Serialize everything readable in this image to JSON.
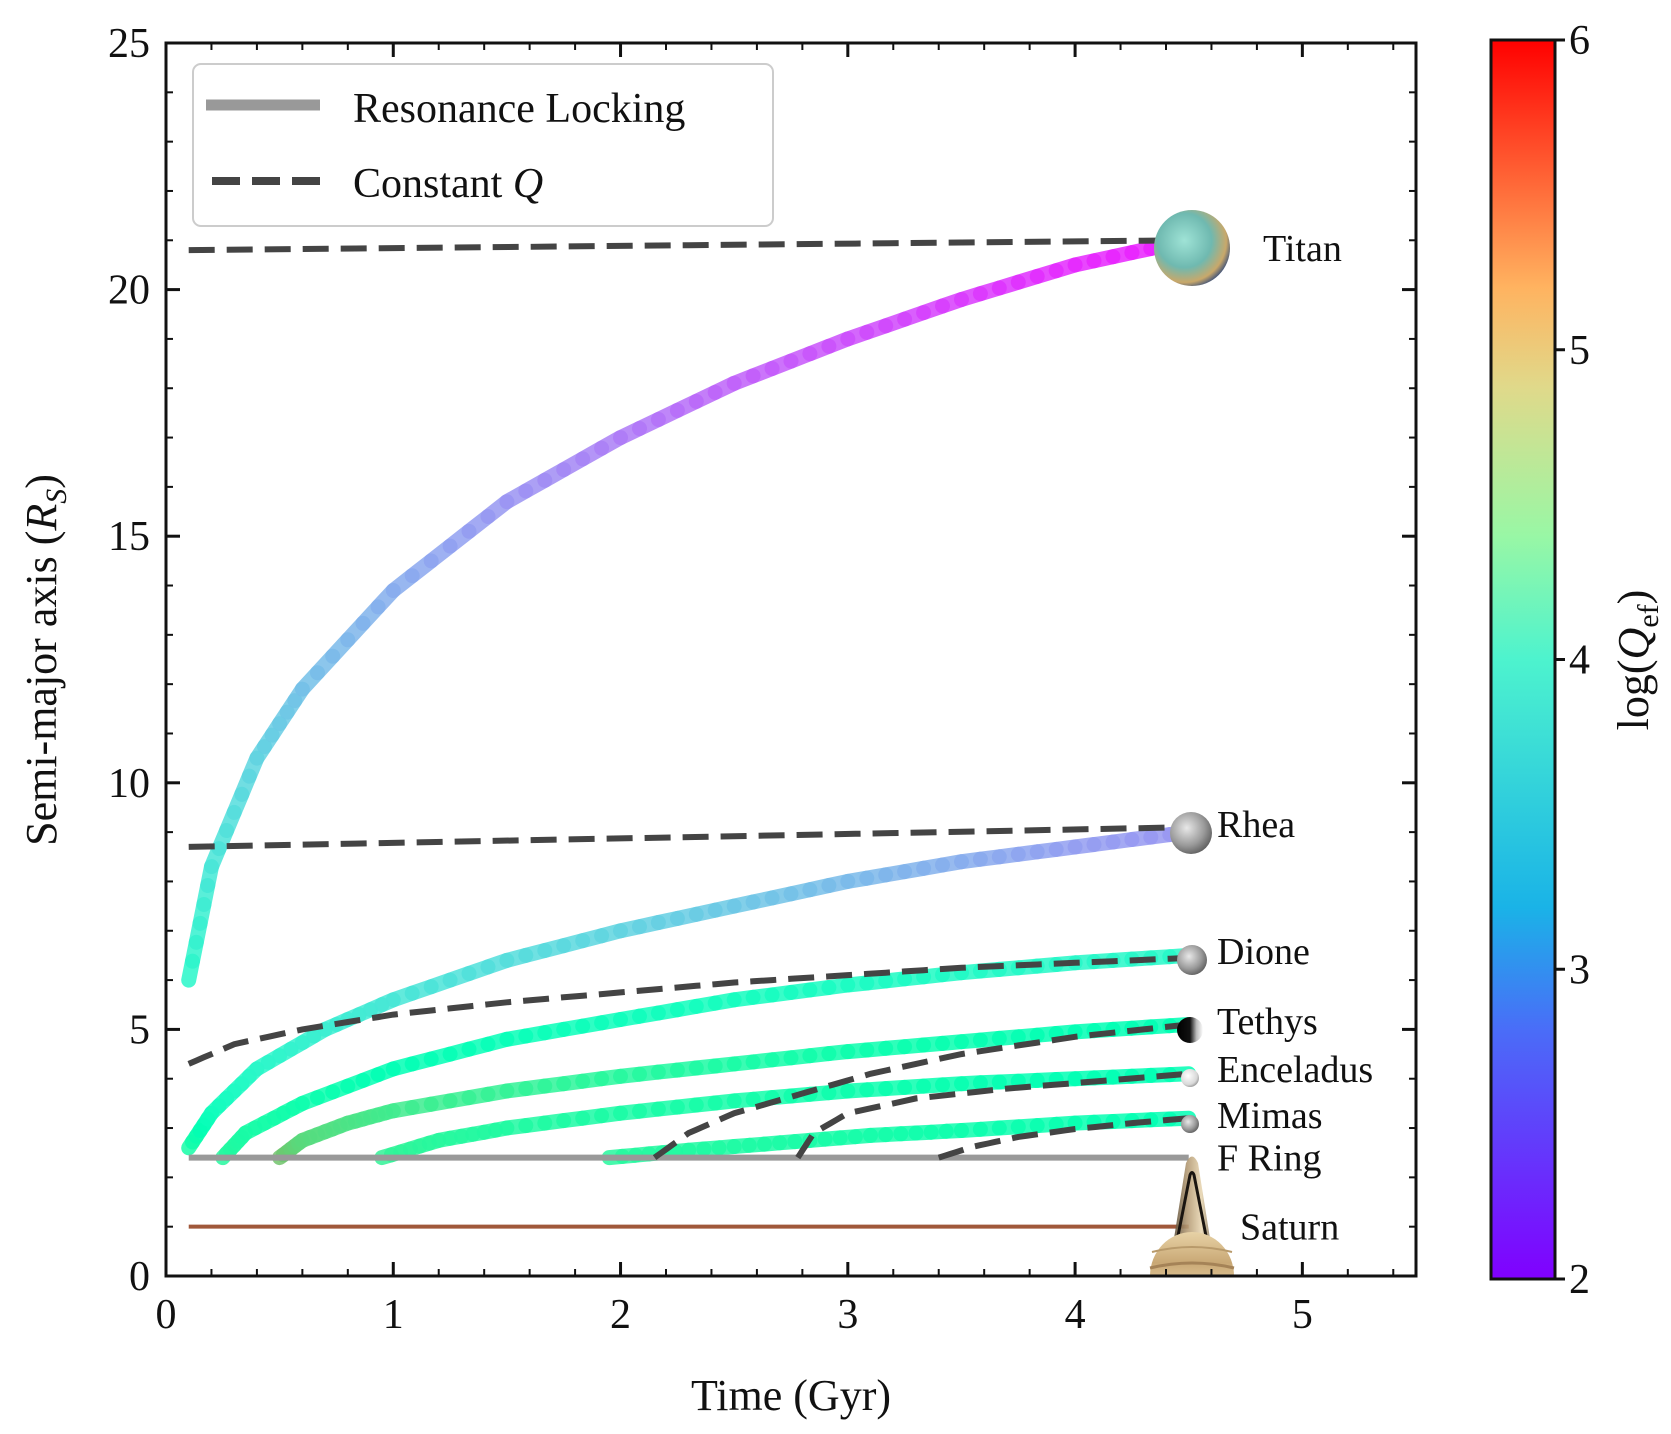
{
  "chart_data": {
    "type": "line",
    "xlabel": "Time (Gyr)",
    "ylabel_main": "Semi-major axis (",
    "ylabel_symbol": "R",
    "ylabel_sub": "S",
    "ylabel_close": ")",
    "xlim": [
      0,
      5.5
    ],
    "ylim": [
      0,
      25
    ],
    "x_ticks": [
      0,
      1,
      2,
      3,
      4,
      5
    ],
    "y_ticks": [
      0,
      5,
      10,
      15,
      20,
      25
    ],
    "legend": {
      "position": "top-left",
      "entries": [
        {
          "label": "Resonance Locking",
          "style": "solid",
          "color": "#999999"
        },
        {
          "label_main": "Constant ",
          "label_italic": "Q",
          "style": "dashed",
          "color": "#444444"
        }
      ]
    },
    "colorbar": {
      "label_prefix": "log(",
      "label_symbol": "Q",
      "label_sub": "ef",
      "label_suffix": ")",
      "range": [
        2,
        6
      ],
      "ticks": [
        2,
        3,
        4,
        5,
        6
      ],
      "colormap": "rainbow"
    },
    "saturn_line": {
      "y": 1,
      "x_end": 4.5,
      "color": "#a0583a"
    },
    "f_ring_line": {
      "y": 2.4,
      "x_start": 0.1,
      "x_end": 4.5,
      "color": "#999999"
    },
    "moons": [
      {
        "name": "Titan",
        "final_a": 21.0,
        "rl_x": [
          0.1,
          0.2,
          0.4,
          0.6,
          1.0,
          1.5,
          2.0,
          2.5,
          3.0,
          3.5,
          4.0,
          4.5
        ],
        "rl_y": [
          6.0,
          8.3,
          10.5,
          11.9,
          13.9,
          15.7,
          17.0,
          18.1,
          19.0,
          19.8,
          20.5,
          21.0
        ],
        "rl_logQ": [
          3.7,
          3.45,
          3.25,
          3.1,
          2.95,
          2.8,
          2.65,
          2.5,
          2.4,
          2.3,
          2.2,
          2.15
        ],
        "cq_x": [
          0.1,
          4.5
        ],
        "cq_y": [
          20.8,
          21.0
        ]
      },
      {
        "name": "Rhea",
        "final_a": 9.1,
        "rl_x": [
          0.1,
          0.2,
          0.4,
          0.7,
          1.0,
          1.5,
          2.0,
          2.5,
          3.0,
          3.5,
          4.0,
          4.5
        ],
        "rl_y": [
          2.6,
          3.3,
          4.2,
          5.0,
          5.6,
          6.4,
          7.0,
          7.5,
          8.0,
          8.4,
          8.7,
          9.0
        ],
        "rl_logQ": [
          4.2,
          3.9,
          3.7,
          3.55,
          3.45,
          3.35,
          3.25,
          3.15,
          3.05,
          2.95,
          2.85,
          2.8
        ],
        "cq_x": [
          0.1,
          4.5
        ],
        "cq_y": [
          8.7,
          9.1
        ]
      },
      {
        "name": "Dione",
        "final_a": 6.5,
        "rl_x": [
          0.25,
          0.35,
          0.6,
          1.0,
          1.5,
          2.0,
          2.5,
          3.0,
          3.5,
          4.0,
          4.5
        ],
        "rl_y": [
          2.4,
          2.9,
          3.5,
          4.2,
          4.8,
          5.2,
          5.6,
          5.9,
          6.15,
          6.35,
          6.5
        ],
        "rl_logQ": [
          4.3,
          4.2,
          4.1,
          4.0,
          3.95,
          3.9,
          3.85,
          3.8,
          3.75,
          3.7,
          3.7
        ],
        "cq_x": [
          0.1,
          0.3,
          0.6,
          1.0,
          1.5,
          2.0,
          2.5,
          3.0,
          3.5,
          4.0,
          4.5
        ],
        "cq_y": [
          4.3,
          4.7,
          5.0,
          5.3,
          5.55,
          5.75,
          5.95,
          6.1,
          6.25,
          6.35,
          6.45
        ]
      },
      {
        "name": "Tethys",
        "final_a": 5.1,
        "rl_x": [
          0.5,
          0.6,
          0.8,
          1.0,
          1.5,
          2.0,
          2.5,
          3.0,
          3.5,
          4.0,
          4.5
        ],
        "rl_y": [
          2.4,
          2.75,
          3.1,
          3.35,
          3.75,
          4.05,
          4.3,
          4.55,
          4.75,
          4.95,
          5.1
        ],
        "rl_logQ": [
          4.9,
          4.7,
          4.6,
          4.5,
          4.4,
          4.3,
          4.2,
          4.1,
          4.05,
          4.0,
          4.0
        ],
        "cq_x": [
          2.15,
          2.3,
          2.5,
          2.8,
          3.1,
          3.5,
          4.0,
          4.5
        ],
        "cq_y": [
          2.4,
          2.9,
          3.3,
          3.7,
          4.1,
          4.5,
          4.85,
          5.1
        ]
      },
      {
        "name": "Enceladus",
        "final_a": 4.1,
        "rl_x": [
          0.95,
          1.2,
          1.5,
          2.0,
          2.5,
          3.0,
          3.5,
          4.0,
          4.5
        ],
        "rl_y": [
          2.4,
          2.75,
          3.0,
          3.3,
          3.55,
          3.75,
          3.9,
          4.0,
          4.1
        ],
        "rl_logQ": [
          4.4,
          4.3,
          4.25,
          4.2,
          4.15,
          4.1,
          4.05,
          4.0,
          4.0
        ],
        "cq_x": [
          2.78,
          2.85,
          3.0,
          3.3,
          3.7,
          4.1,
          4.5
        ],
        "cq_y": [
          2.4,
          2.9,
          3.3,
          3.6,
          3.8,
          3.95,
          4.1
        ]
      },
      {
        "name": "Mimas",
        "final_a": 3.2,
        "rl_x": [
          1.95,
          2.3,
          2.7,
          3.1,
          3.5,
          4.0,
          4.5
        ],
        "rl_y": [
          2.4,
          2.55,
          2.7,
          2.85,
          2.95,
          3.1,
          3.2
        ],
        "rl_logQ": [
          4.3,
          4.25,
          4.2,
          4.15,
          4.1,
          4.05,
          4.0
        ],
        "cq_x": [
          3.4,
          3.55,
          3.75,
          4.0,
          4.25,
          4.5
        ],
        "cq_y": [
          2.4,
          2.62,
          2.82,
          2.98,
          3.1,
          3.2
        ]
      }
    ],
    "static_labels": [
      {
        "name": "F Ring",
        "y": 2.4
      },
      {
        "name": "Saturn",
        "y": 1.0
      }
    ]
  }
}
